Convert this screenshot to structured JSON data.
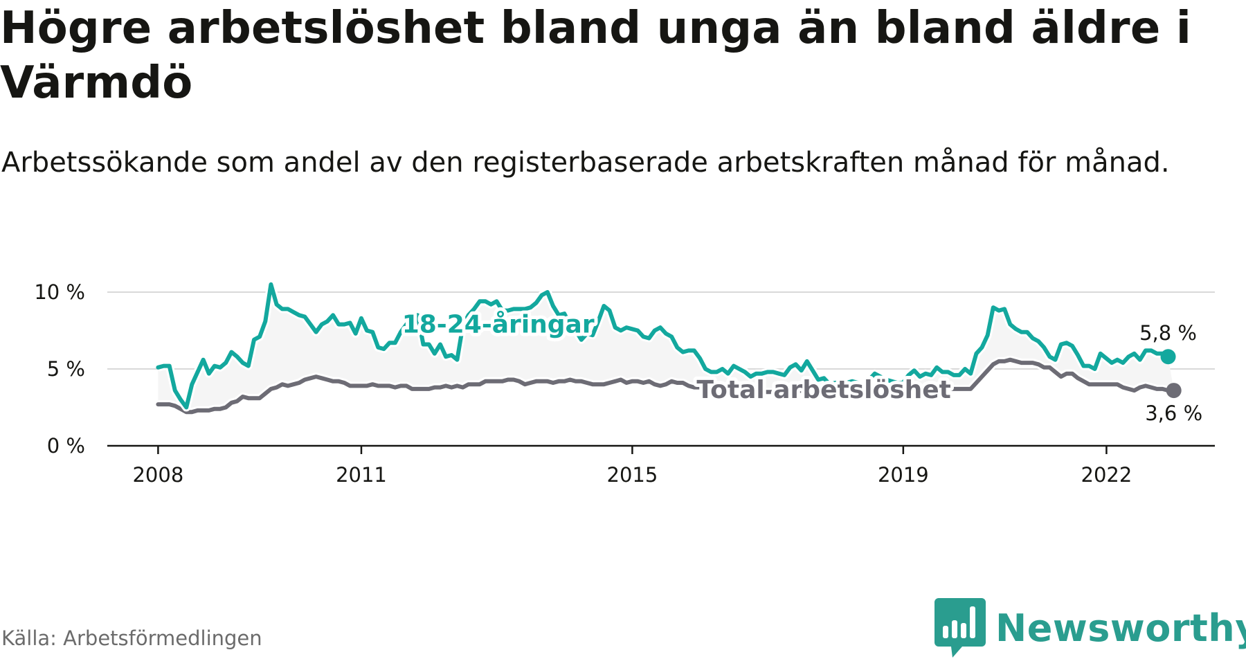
{
  "header": {
    "title": "Högre arbetslöshet bland unga än bland äldre i Värmdö",
    "subtitle": "Arbetssökande som andel av den registerbaserade arbetskraften månad för månad."
  },
  "footer": {
    "source": "Källa: Arbetsförmedlingen",
    "brand": "Newsworthy"
  },
  "colors": {
    "young": "#13a89e",
    "total": "#6d6c75",
    "area": "#f5f5f5",
    "grid": "#d9d9d9",
    "axis": "#161613"
  },
  "chart_data": {
    "type": "line",
    "x_start": 2008.0,
    "x_step": 0.0833,
    "xlim": [
      2007.25,
      2023.6
    ],
    "ylim": [
      0,
      10
    ],
    "y_ticks": [
      0,
      5,
      10
    ],
    "y_tick_labels": [
      "0 %",
      "5 %",
      "10 %"
    ],
    "x_ticks": [
      2008,
      2011,
      2015,
      2019,
      2022
    ],
    "x_tick_labels": [
      "2008",
      "2011",
      "2015",
      "2019",
      "2022"
    ],
    "series": [
      {
        "name": "18-24-åringar",
        "label": "18-24-åringar",
        "end_label": "5,8 %",
        "values": [
          5.1,
          5.2,
          5.2,
          3.6,
          3.0,
          2.5,
          4.0,
          4.8,
          5.6,
          4.7,
          5.2,
          5.1,
          5.4,
          6.1,
          5.8,
          5.4,
          5.2,
          6.9,
          7.1,
          8.1,
          10.5,
          9.2,
          8.9,
          8.9,
          8.7,
          8.5,
          8.4,
          7.9,
          7.4,
          7.9,
          8.1,
          8.5,
          7.9,
          7.9,
          8.0,
          7.3,
          8.3,
          7.5,
          7.4,
          6.4,
          6.3,
          6.7,
          6.7,
          7.4,
          7.9,
          8.2,
          8.5,
          6.6,
          6.6,
          6.0,
          6.6,
          5.8,
          5.9,
          5.6,
          7.8,
          8.5,
          8.9,
          9.4,
          9.4,
          9.2,
          9.4,
          8.8,
          8.8,
          8.9,
          8.9,
          8.9,
          9.0,
          9.3,
          9.8,
          10.0,
          9.1,
          8.5,
          8.6,
          7.9,
          7.5,
          6.9,
          7.3,
          7.2,
          8.1,
          9.1,
          8.8,
          7.7,
          7.5,
          7.7,
          7.6,
          7.5,
          7.1,
          7.0,
          7.5,
          7.7,
          7.3,
          7.1,
          6.4,
          6.1,
          6.2,
          6.2,
          5.7,
          5.0,
          4.8,
          4.8,
          5.0,
          4.7,
          5.2,
          5.0,
          4.8,
          4.5,
          4.7,
          4.7,
          4.8,
          4.8,
          4.7,
          4.6,
          5.1,
          5.3,
          4.9,
          5.5,
          4.9,
          4.3,
          4.4,
          4.0,
          4.1,
          3.9,
          4.1,
          4.2,
          4.1,
          3.9,
          4.3,
          4.7,
          4.5,
          4.3,
          4.2,
          4.1,
          4.1,
          4.6,
          4.9,
          4.5,
          4.7,
          4.6,
          5.1,
          4.8,
          4.8,
          4.6,
          4.6,
          5.0,
          4.7,
          6.0,
          6.4,
          7.2,
          9.0,
          8.8,
          8.9,
          7.9,
          7.6,
          7.4,
          7.4,
          7.0,
          6.8,
          6.4,
          5.8,
          5.6,
          6.6,
          6.7,
          6.5,
          5.9,
          5.2,
          5.2,
          5.0,
          6.0,
          5.7,
          5.4,
          5.6,
          5.4,
          5.8,
          6.0,
          5.6,
          6.2,
          6.2,
          6.0,
          6.0,
          5.8
        ]
      },
      {
        "name": "Total arbetslöshet",
        "label": "Total arbetslöshet",
        "end_label": "3,6 %",
        "values": [
          2.7,
          2.7,
          2.7,
          2.6,
          2.4,
          2.2,
          2.2,
          2.3,
          2.3,
          2.3,
          2.4,
          2.4,
          2.5,
          2.8,
          2.9,
          3.2,
          3.1,
          3.1,
          3.1,
          3.4,
          3.7,
          3.8,
          4.0,
          3.9,
          4.0,
          4.1,
          4.3,
          4.4,
          4.5,
          4.4,
          4.3,
          4.2,
          4.2,
          4.1,
          3.9,
          3.9,
          3.9,
          3.9,
          4.0,
          3.9,
          3.9,
          3.9,
          3.8,
          3.9,
          3.9,
          3.7,
          3.7,
          3.7,
          3.7,
          3.8,
          3.8,
          3.9,
          3.8,
          3.9,
          3.8,
          4.0,
          4.0,
          4.0,
          4.2,
          4.2,
          4.2,
          4.2,
          4.3,
          4.3,
          4.2,
          4.0,
          4.1,
          4.2,
          4.2,
          4.2,
          4.1,
          4.2,
          4.2,
          4.3,
          4.2,
          4.2,
          4.1,
          4.0,
          4.0,
          4.0,
          4.1,
          4.2,
          4.3,
          4.1,
          4.2,
          4.2,
          4.1,
          4.2,
          4.0,
          3.9,
          4.0,
          4.2,
          4.1,
          4.1,
          3.9,
          3.8,
          3.8,
          3.8,
          3.7,
          3.7,
          3.7,
          3.6,
          3.6,
          3.6,
          3.6,
          3.6,
          3.6,
          3.5,
          3.5,
          3.5,
          3.5,
          3.6,
          3.6,
          3.5,
          3.6,
          3.6,
          3.5,
          3.5,
          3.4,
          3.4,
          3.4,
          3.4,
          3.4,
          3.4,
          3.4,
          3.4,
          3.4,
          3.5,
          3.5,
          3.5,
          3.5,
          3.5,
          3.5,
          3.6,
          3.6,
          3.6,
          3.6,
          3.6,
          3.6,
          3.6,
          3.7,
          3.7,
          3.7,
          3.7,
          3.7,
          4.1,
          4.5,
          4.9,
          5.3,
          5.5,
          5.5,
          5.6,
          5.5,
          5.4,
          5.4,
          5.4,
          5.3,
          5.1,
          5.1,
          4.8,
          4.5,
          4.7,
          4.7,
          4.4,
          4.2,
          4.0,
          4.0,
          4.0,
          4.0,
          4.0,
          4.0,
          3.8,
          3.7,
          3.6,
          3.8,
          3.9,
          3.8,
          3.7,
          3.7,
          3.6,
          3.6
        ]
      }
    ]
  }
}
